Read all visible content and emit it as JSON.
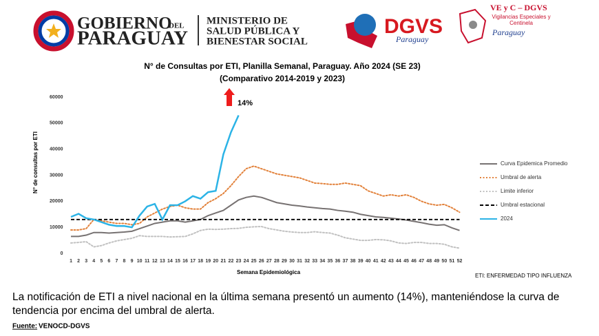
{
  "header": {
    "gov_line1": "GOBIERNO",
    "gov_del": "DEL",
    "gov_line2": "PARAGUAY",
    "ministry": [
      "MINISTERIO DE",
      "SALUD PÚBLICA Y",
      "BIENESTAR SOCIAL"
    ],
    "dgvs": "DGVS",
    "dgvs_sub": "Paraguay",
    "vec_title": "VE y C – DGVS",
    "vec_sub": [
      "Vigilancias Especiales y",
      "Centinela"
    ],
    "vec_place": "Paraguay"
  },
  "chart_data": {
    "type": "line",
    "title": "N° de Consultas por ETI, Planilla Semanal, Paraguay. Año 2024  (SE 23)",
    "subtitle": "(Comparativo 2014-2019 y 2023)",
    "y_label": "N° de consultas por ETI",
    "x_label": "Semana Epidemiológica",
    "annotation": "14%",
    "categories": [
      1,
      2,
      3,
      4,
      5,
      6,
      7,
      8,
      9,
      10,
      11,
      12,
      13,
      14,
      15,
      16,
      17,
      18,
      19,
      20,
      21,
      22,
      23,
      24,
      25,
      26,
      27,
      28,
      29,
      30,
      31,
      32,
      33,
      34,
      35,
      36,
      37,
      38,
      39,
      40,
      41,
      42,
      43,
      44,
      45,
      46,
      47,
      48,
      49,
      50,
      51,
      52
    ],
    "ylim": [
      0,
      60000
    ],
    "yticks": [
      0,
      10000,
      20000,
      30000,
      40000,
      50000,
      60000
    ],
    "legend": "right",
    "series": [
      {
        "name": "Curva Epidemica Promedio",
        "color": "#767171",
        "style": "solid",
        "values": [
          6500,
          6500,
          7000,
          8000,
          8000,
          7800,
          8000,
          8200,
          8500,
          9500,
          10500,
          11500,
          12000,
          12500,
          12500,
          12000,
          12500,
          13000,
          14500,
          15500,
          16500,
          18500,
          20500,
          21500,
          22000,
          21500,
          20500,
          19500,
          19000,
          18500,
          18200,
          17800,
          17500,
          17200,
          17000,
          16500,
          16200,
          15800,
          15000,
          14500,
          14000,
          13800,
          13500,
          13200,
          12800,
          12300,
          11800,
          11200,
          10800,
          11000,
          9800,
          8800
        ]
      },
      {
        "name": "Umbral de alerta",
        "color": "#e2813a",
        "style": "dotted",
        "values": [
          9000,
          9000,
          9500,
          13000,
          12500,
          12000,
          11500,
          11500,
          11000,
          11500,
          14000,
          15500,
          17000,
          18000,
          18500,
          17500,
          17000,
          17000,
          19500,
          21000,
          23000,
          26000,
          29500,
          32500,
          33500,
          32500,
          31500,
          30500,
          30000,
          29500,
          29000,
          28000,
          27000,
          26800,
          26500,
          26500,
          27000,
          26500,
          26000,
          24000,
          23000,
          22000,
          22500,
          22000,
          22500,
          21500,
          20000,
          19000,
          18500,
          18800,
          17500,
          15800
        ]
      },
      {
        "name": "Limite inferior",
        "color": "#c0c0c0",
        "style": "dotted",
        "values": [
          4000,
          4200,
          4500,
          2500,
          3000,
          4000,
          4800,
          5300,
          5800,
          6800,
          6500,
          6500,
          6500,
          6300,
          6400,
          6500,
          7500,
          8800,
          9300,
          9200,
          9300,
          9500,
          9600,
          10000,
          10200,
          10300,
          9500,
          9000,
          8500,
          8200,
          8000,
          8000,
          8300,
          8000,
          7800,
          7000,
          6000,
          5500,
          5000,
          5000,
          5300,
          5200,
          4800,
          4000,
          3800,
          4200,
          4200,
          3800,
          3800,
          3500,
          2500,
          2000
        ]
      },
      {
        "name": "Umbral estacional",
        "color": "#000000",
        "style": "dashed",
        "values": [
          13000,
          13000,
          13000,
          13000,
          13000,
          13000,
          13000,
          13000,
          13000,
          13000,
          13000,
          13000,
          13000,
          13000,
          13000,
          13000,
          13000,
          13000,
          13000,
          13000,
          13000,
          13000,
          13000,
          13000,
          13000,
          13000,
          13000,
          13000,
          13000,
          13000,
          13000,
          13000,
          13000,
          13000,
          13000,
          13000,
          13000,
          13000,
          13000,
          13000,
          13000,
          13000,
          13000,
          13000,
          13000,
          13000,
          13000,
          13000,
          13000,
          13000,
          13000,
          13000
        ]
      },
      {
        "name": "2024",
        "color": "#2bb3e6",
        "style": "solid",
        "values": [
          14000,
          15200,
          13500,
          13000,
          12000,
          11000,
          10500,
          10500,
          10000,
          14500,
          18000,
          19000,
          13000,
          18500,
          18500,
          20000,
          22000,
          21000,
          23500,
          24000,
          38000,
          46500,
          53000,
          null,
          null,
          null,
          null,
          null,
          null,
          null,
          null,
          null,
          null,
          null,
          null,
          null,
          null,
          null,
          null,
          null,
          null,
          null,
          null,
          null,
          null,
          null,
          null,
          null,
          null,
          null,
          null,
          null
        ]
      }
    ]
  },
  "notes": {
    "eti": "ETI: ENFERMEDAD TIPO INFLUENZA",
    "body": [
      "La notificación de ETI a nivel nacional en la última semana presentó un aumento (14%), manteniéndose la curva de",
      "tendencia por encima del umbral de alerta."
    ],
    "source_label": "Fuente:",
    "source": "VENOCD-DGVS"
  }
}
